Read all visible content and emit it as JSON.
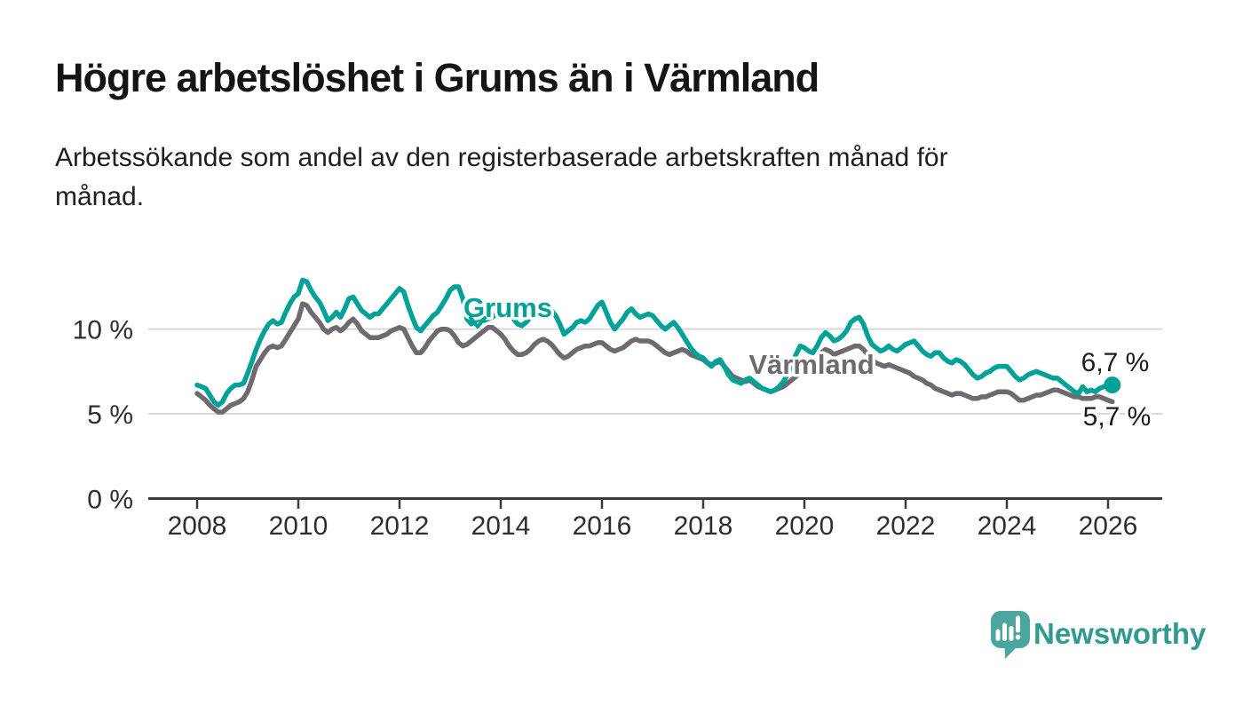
{
  "header": {
    "title": "Högre arbetslöshet i Grums än i Värmland",
    "subtitle": "Arbetssökande som andel av den registerbaserade arbetskraften månad för månad."
  },
  "chart_data": {
    "type": "line",
    "unit": "%",
    "x_start_year": 2008,
    "x_start_month": 1,
    "points_per_year": 12,
    "x_ticks": [
      2008,
      2010,
      2012,
      2014,
      2016,
      2018,
      2020,
      2022,
      2024,
      2026
    ],
    "y_axis": [
      {
        "value": 0,
        "label": "0 %"
      },
      {
        "value": 5,
        "label": "5 %"
      },
      {
        "value": 10,
        "label": "10 %"
      }
    ],
    "gridline_values": [
      5,
      10
    ],
    "ylim": [
      0,
      13.5
    ],
    "legend_position": "inline-labels",
    "grid": "horizontal-only",
    "series": [
      {
        "name": "Grums",
        "color": "#00a196",
        "end_label": "6,7 %",
        "end_value": 6.7,
        "values": [
          6.7,
          6.6,
          6.5,
          6.1,
          5.7,
          5.5,
          5.7,
          6.2,
          6.5,
          6.7,
          6.7,
          6.8,
          7.4,
          8.1,
          8.8,
          9.4,
          9.9,
          10.3,
          10.5,
          10.3,
          10.4,
          11.0,
          11.5,
          11.9,
          12.1,
          12.9,
          12.8,
          12.3,
          11.9,
          11.6,
          11.1,
          10.5,
          10.7,
          11.0,
          10.7,
          11.2,
          11.8,
          11.9,
          11.5,
          11.1,
          10.9,
          10.7,
          10.9,
          10.9,
          11.2,
          11.5,
          11.8,
          12.1,
          12.4,
          12.2,
          11.4,
          10.7,
          10.1,
          9.9,
          10.2,
          10.5,
          10.8,
          11.0,
          11.4,
          11.8,
          12.3,
          12.5,
          12.5,
          11.8,
          10.6,
          10.3,
          10.5,
          10.6,
          10.5,
          10.6,
          10.7,
          10.9,
          11.2,
          11.4,
          11.0,
          10.6,
          10.3,
          10.2,
          10.4,
          10.7,
          10.9,
          11.0,
          11.1,
          11.2,
          11.1,
          10.8,
          10.3,
          9.7,
          9.9,
          10.1,
          10.4,
          10.5,
          10.4,
          10.6,
          11.0,
          11.4,
          11.6,
          11.0,
          10.4,
          10.0,
          10.3,
          10.6,
          11.0,
          11.2,
          10.9,
          10.7,
          10.8,
          10.9,
          10.8,
          10.5,
          10.2,
          10.0,
          10.2,
          10.4,
          10.1,
          9.7,
          9.3,
          8.9,
          8.6,
          8.4,
          8.3,
          8.0,
          7.8,
          8.1,
          8.2,
          7.8,
          7.3,
          7.0,
          6.9,
          6.8,
          7.0,
          7.1,
          6.9,
          6.7,
          6.5,
          6.4,
          6.3,
          6.4,
          6.6,
          6.9,
          7.3,
          7.9,
          8.5,
          9.0,
          8.9,
          8.7,
          8.6,
          9.0,
          9.5,
          9.8,
          9.6,
          9.3,
          9.4,
          9.6,
          9.9,
          10.4,
          10.6,
          10.7,
          10.3,
          9.6,
          9.1,
          8.9,
          8.7,
          8.8,
          9.0,
          8.8,
          8.7,
          8.9,
          9.1,
          9.2,
          9.3,
          9.0,
          8.7,
          8.5,
          8.4,
          8.6,
          8.6,
          8.3,
          8.1,
          8.0,
          8.2,
          8.1,
          7.9,
          7.6,
          7.3,
          7.1,
          7.2,
          7.4,
          7.5,
          7.7,
          7.8,
          7.8,
          7.8,
          7.5,
          7.2,
          7.0,
          7.1,
          7.3,
          7.4,
          7.5,
          7.4,
          7.3,
          7.2,
          7.1,
          7.1,
          6.9,
          6.7,
          6.5,
          6.3,
          6.2,
          6.6,
          6.3,
          6.4,
          6.3,
          6.5,
          6.6,
          6.6,
          6.7
        ]
      },
      {
        "name": "Värmland",
        "color": "#6e6a6f",
        "end_label": "5,7 %",
        "end_value": 5.7,
        "values": [
          6.2,
          6.0,
          5.8,
          5.5,
          5.3,
          5.1,
          5.1,
          5.3,
          5.5,
          5.6,
          5.7,
          5.9,
          6.3,
          7.0,
          7.8,
          8.2,
          8.6,
          8.9,
          9.0,
          8.9,
          9.0,
          9.4,
          9.8,
          10.2,
          10.6,
          11.5,
          11.4,
          11.0,
          10.7,
          10.4,
          10.0,
          9.8,
          10.0,
          10.1,
          9.9,
          10.1,
          10.4,
          10.6,
          10.3,
          9.9,
          9.7,
          9.5,
          9.5,
          9.5,
          9.6,
          9.7,
          9.9,
          10.0,
          10.1,
          10.0,
          9.5,
          9.0,
          8.6,
          8.6,
          8.9,
          9.3,
          9.6,
          9.9,
          10.0,
          10.0,
          9.9,
          9.6,
          9.2,
          9.0,
          9.1,
          9.3,
          9.5,
          9.7,
          9.9,
          10.1,
          10.1,
          9.9,
          9.7,
          9.4,
          9.0,
          8.7,
          8.5,
          8.5,
          8.6,
          8.8,
          9.1,
          9.3,
          9.4,
          9.3,
          9.1,
          8.8,
          8.5,
          8.3,
          8.4,
          8.6,
          8.8,
          8.9,
          9.0,
          9.0,
          9.1,
          9.2,
          9.2,
          9.0,
          8.8,
          8.7,
          8.8,
          8.9,
          9.1,
          9.3,
          9.4,
          9.3,
          9.3,
          9.3,
          9.2,
          9.0,
          8.8,
          8.6,
          8.5,
          8.6,
          8.7,
          8.8,
          8.7,
          8.5,
          8.4,
          8.3,
          8.2,
          8.0,
          7.9,
          8.0,
          8.1,
          7.8,
          7.5,
          7.2,
          7.1,
          7.0,
          6.9,
          7.0,
          6.8,
          6.6,
          6.5,
          6.4,
          6.3,
          6.4,
          6.5,
          6.6,
          6.8,
          7.0,
          7.2,
          7.4,
          7.5,
          7.4,
          7.5,
          8.0,
          8.6,
          8.8,
          8.7,
          8.5,
          8.6,
          8.7,
          8.8,
          8.9,
          9.0,
          9.0,
          8.8,
          8.5,
          8.2,
          8.0,
          7.9,
          7.8,
          7.9,
          7.8,
          7.7,
          7.6,
          7.5,
          7.4,
          7.2,
          7.1,
          7.0,
          6.8,
          6.7,
          6.5,
          6.4,
          6.3,
          6.2,
          6.1,
          6.2,
          6.2,
          6.1,
          6.0,
          5.9,
          5.9,
          6.0,
          6.0,
          6.1,
          6.2,
          6.3,
          6.3,
          6.3,
          6.2,
          6.0,
          5.8,
          5.8,
          5.9,
          6.0,
          6.1,
          6.1,
          6.2,
          6.3,
          6.4,
          6.4,
          6.3,
          6.2,
          6.1,
          6.0,
          6.0,
          5.9,
          5.9,
          5.9,
          6.0,
          6.0,
          5.9,
          5.8,
          5.7
        ]
      }
    ]
  },
  "footer": {
    "brand": "Newsworthy"
  },
  "colors": {
    "grums": "#00a196",
    "varmland": "#6e6a6f",
    "logo_teal": "#4aa69e",
    "brand_text": "#2f9a91",
    "gridline": "#d9d9d9",
    "axis": "#3b3b3b"
  }
}
